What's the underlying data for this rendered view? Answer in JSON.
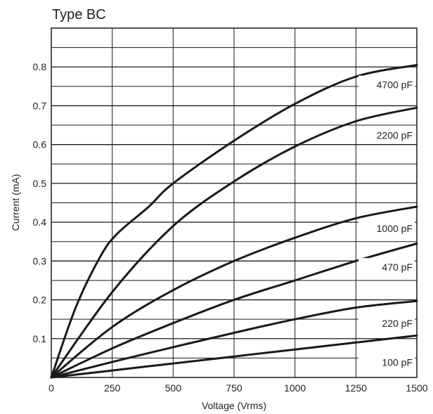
{
  "chart_data": {
    "type": "line",
    "title": "Type BC",
    "xlabel": "Voltage (Vrms)",
    "ylabel": "Current (mA)",
    "xlim": [
      0,
      1500
    ],
    "ylim": [
      0,
      0.9
    ],
    "x_ticks": [
      "0",
      "250",
      "500",
      "750",
      "1000",
      "1250",
      "1500"
    ],
    "y_ticks": [
      "0.1",
      "0.2",
      "0.3",
      "0.4",
      "0.5",
      "0.6",
      "0.7",
      "0.8"
    ],
    "grid": true,
    "series": [
      {
        "name": "4700 pF",
        "x": [
          0,
          100,
          200,
          270,
          400,
          500,
          750,
          1000,
          1250,
          1500
        ],
        "y": [
          0,
          0.18,
          0.31,
          0.37,
          0.44,
          0.5,
          0.61,
          0.705,
          0.775,
          0.805
        ]
      },
      {
        "name": "2200 pF",
        "x": [
          0,
          250,
          500,
          750,
          1000,
          1250,
          1500
        ],
        "y": [
          0,
          0.22,
          0.39,
          0.505,
          0.595,
          0.66,
          0.695
        ]
      },
      {
        "name": "1000 pF",
        "x": [
          0,
          250,
          500,
          750,
          1000,
          1250,
          1500
        ],
        "y": [
          0,
          0.13,
          0.225,
          0.3,
          0.36,
          0.41,
          0.44
        ]
      },
      {
        "name": "470 pF",
        "x": [
          0,
          250,
          500,
          750,
          1000,
          1250,
          1500
        ],
        "y": [
          0,
          0.075,
          0.14,
          0.2,
          0.25,
          0.3,
          0.345
        ]
      },
      {
        "name": "220 pF",
        "x": [
          0,
          250,
          500,
          750,
          1000,
          1250,
          1500
        ],
        "y": [
          0,
          0.04,
          0.078,
          0.115,
          0.15,
          0.18,
          0.197
        ]
      },
      {
        "name": "100 pF",
        "x": [
          0,
          250,
          500,
          750,
          1000,
          1250,
          1500
        ],
        "y": [
          0,
          0.018,
          0.036,
          0.054,
          0.072,
          0.09,
          0.108
        ]
      }
    ],
    "minor_grid_y": [
      0.05,
      0.15,
      0.25,
      0.35,
      0.45,
      0.55,
      0.65,
      0.75,
      0.85
    ],
    "colors": {
      "line": "#1a1a1a",
      "grid": "#1a1a1a",
      "text": "#222222"
    }
  }
}
